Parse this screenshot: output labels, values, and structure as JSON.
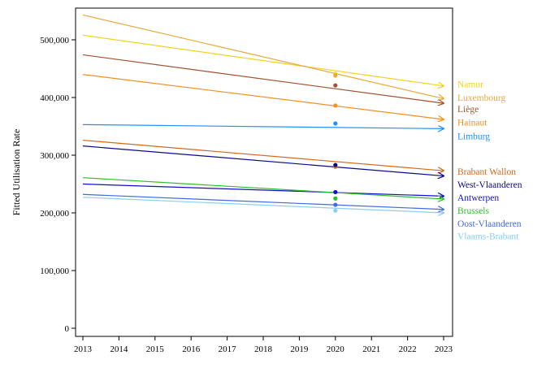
{
  "chart_data": {
    "type": "line",
    "title": "",
    "xlabel": "",
    "ylabel": "Fitted Utilisation Rate",
    "xlim": [
      2013,
      2023
    ],
    "ylim": [
      0,
      550000
    ],
    "x_ticks": [
      "2013",
      "2014",
      "2015",
      "2016",
      "2017",
      "2018",
      "2019",
      "2020",
      "2021",
      "2022",
      "2023"
    ],
    "y_ticks": [
      {
        "value": 0,
        "label": "0"
      },
      {
        "value": 100000,
        "label": "100,000"
      },
      {
        "value": 200000,
        "label": "200,000"
      },
      {
        "value": 300000,
        "label": "300,000"
      },
      {
        "value": 400000,
        "label": "400,000"
      },
      {
        "value": 500000,
        "label": "500,000"
      }
    ],
    "grid": false,
    "legend": "right",
    "marker_x": 2020,
    "series": [
      {
        "name": "Namur",
        "color": "#f2d21e",
        "start": 508000,
        "end": 420000,
        "point": 441000,
        "label_value": 423000
      },
      {
        "name": "Luxembourg",
        "color": "#e8a93c",
        "start": 543000,
        "end": 398000,
        "point": 438000,
        "label_value": 400000
      },
      {
        "name": "Liège",
        "color": "#a0522d",
        "start": 474000,
        "end": 390000,
        "point": 421000,
        "label_value": 380000
      },
      {
        "name": "Hainaut",
        "color": "#f2901e",
        "start": 440000,
        "end": 362000,
        "point": 386000,
        "label_value": 357000
      },
      {
        "name": "Limburg",
        "color": "#1e90ff",
        "start": 353000,
        "end": 346000,
        "point": 355000,
        "label_value": 333000
      },
      {
        "name": "Brabant Wallon",
        "color": "#d2691e",
        "start": 326000,
        "end": 273000,
        "point": 280000,
        "label_value": 272000
      },
      {
        "name": "West-Vlaanderen",
        "color": "#0a0a8c",
        "start": 316000,
        "end": 264000,
        "point": 283000,
        "label_value": 249000
      },
      {
        "name": "Antwerpen",
        "color": "#1010c8",
        "start": 250000,
        "end": 229000,
        "point": 236000,
        "label_value": 227000
      },
      {
        "name": "Brussels",
        "color": "#2ebd2e",
        "start": 261000,
        "end": 224000,
        "point": 225000,
        "label_value": 204000
      },
      {
        "name": "Oost-Vlaanderen",
        "color": "#4169e1",
        "start": 232000,
        "end": 206000,
        "point": 214000,
        "label_value": 182000
      },
      {
        "name": "Vlaams-Brabant",
        "color": "#87cefa",
        "start": 227000,
        "end": 200000,
        "point": 204000,
        "label_value": 160000
      }
    ]
  }
}
